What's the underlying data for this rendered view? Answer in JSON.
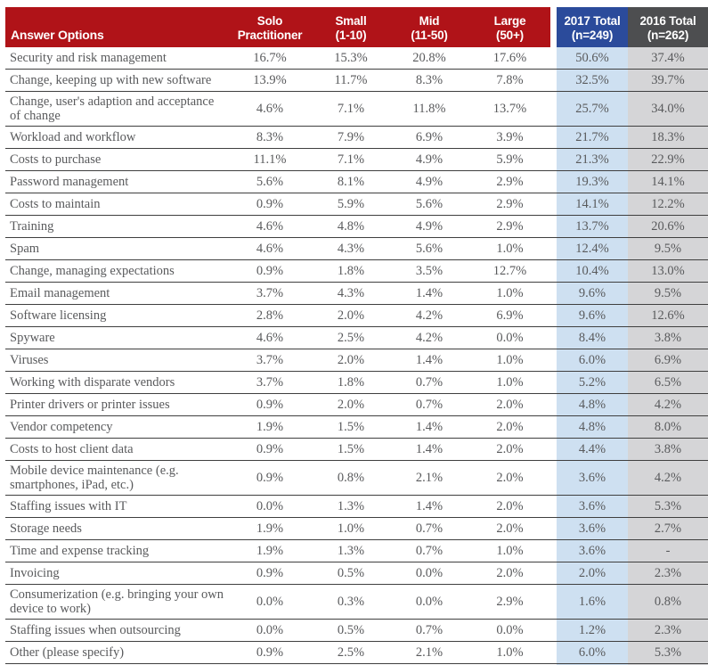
{
  "chart_data": {
    "type": "table",
    "columns": [
      {
        "label": "Answer Options"
      },
      {
        "line1": "Solo",
        "line2": "Practitioner"
      },
      {
        "line1": "Small",
        "line2": "(1-10)"
      },
      {
        "line1": "Mid",
        "line2": "(11-50)"
      },
      {
        "line1": "Large",
        "line2": "(50+)"
      },
      {
        "line1": "2017 Total",
        "line2": "(n=249)"
      },
      {
        "line1": "2016 Total",
        "line2": "(n=262)"
      }
    ],
    "rows": [
      {
        "label": "Security and risk management",
        "values": [
          "16.7%",
          "15.3%",
          "20.8%",
          "17.6%",
          "50.6%",
          "37.4%"
        ]
      },
      {
        "label": "Change, keeping up with new software",
        "values": [
          "13.9%",
          "11.7%",
          "8.3%",
          "7.8%",
          "32.5%",
          "39.7%"
        ]
      },
      {
        "label": "Change, user's adaption and acceptance of change",
        "values": [
          "4.6%",
          "7.1%",
          "11.8%",
          "13.7%",
          "25.7%",
          "34.0%"
        ]
      },
      {
        "label": "Workload and workflow",
        "values": [
          "8.3%",
          "7.9%",
          "6.9%",
          "3.9%",
          "21.7%",
          "18.3%"
        ]
      },
      {
        "label": "Costs to purchase",
        "values": [
          "11.1%",
          "7.1%",
          "4.9%",
          "5.9%",
          "21.3%",
          "22.9%"
        ]
      },
      {
        "label": "Password management",
        "values": [
          "5.6%",
          "8.1%",
          "4.9%",
          "2.9%",
          "19.3%",
          "14.1%"
        ]
      },
      {
        "label": "Costs to maintain",
        "values": [
          "0.9%",
          "5.9%",
          "5.6%",
          "2.9%",
          "14.1%",
          "12.2%"
        ]
      },
      {
        "label": "Training",
        "values": [
          "4.6%",
          "4.8%",
          "4.9%",
          "2.9%",
          "13.7%",
          "20.6%"
        ]
      },
      {
        "label": "Spam",
        "values": [
          "4.6%",
          "4.3%",
          "5.6%",
          "1.0%",
          "12.4%",
          "9.5%"
        ]
      },
      {
        "label": "Change, managing expectations",
        "values": [
          "0.9%",
          "1.8%",
          "3.5%",
          "12.7%",
          "10.4%",
          "13.0%"
        ]
      },
      {
        "label": "Email management",
        "values": [
          "3.7%",
          "4.3%",
          "1.4%",
          "1.0%",
          "9.6%",
          "9.5%"
        ]
      },
      {
        "label": "Software licensing",
        "values": [
          "2.8%",
          "2.0%",
          "4.2%",
          "6.9%",
          "9.6%",
          "12.6%"
        ]
      },
      {
        "label": "Spyware",
        "values": [
          "4.6%",
          "2.5%",
          "4.2%",
          "0.0%",
          "8.4%",
          "3.8%"
        ]
      },
      {
        "label": "Viruses",
        "values": [
          "3.7%",
          "2.0%",
          "1.4%",
          "1.0%",
          "6.0%",
          "6.9%"
        ]
      },
      {
        "label": "Working with disparate vendors",
        "values": [
          "3.7%",
          "1.8%",
          "0.7%",
          "1.0%",
          "5.2%",
          "6.5%"
        ]
      },
      {
        "label": "Printer drivers or printer issues",
        "values": [
          "0.9%",
          "2.0%",
          "0.7%",
          "2.0%",
          "4.8%",
          "4.2%"
        ]
      },
      {
        "label": "Vendor competency",
        "values": [
          "1.9%",
          "1.5%",
          "1.4%",
          "2.0%",
          "4.8%",
          "8.0%"
        ]
      },
      {
        "label": "Costs to host client data",
        "values": [
          "0.9%",
          "1.5%",
          "1.4%",
          "2.0%",
          "4.4%",
          "3.8%"
        ]
      },
      {
        "label": "Mobile device maintenance (e.g. smartphones, iPad, etc.)",
        "values": [
          "0.9%",
          "0.8%",
          "2.1%",
          "2.0%",
          "3.6%",
          "4.2%"
        ]
      },
      {
        "label": "Staffing issues with IT",
        "values": [
          "0.0%",
          "1.3%",
          "1.4%",
          "2.0%",
          "3.6%",
          "5.3%"
        ]
      },
      {
        "label": "Storage needs",
        "values": [
          "1.9%",
          "1.0%",
          "0.7%",
          "2.0%",
          "3.6%",
          "2.7%"
        ]
      },
      {
        "label": "Time and expense tracking",
        "values": [
          "1.9%",
          "1.3%",
          "0.7%",
          "1.0%",
          "3.6%",
          "-"
        ]
      },
      {
        "label": "Invoicing",
        "values": [
          "0.9%",
          "0.5%",
          "0.0%",
          "2.0%",
          "2.0%",
          "2.3%"
        ]
      },
      {
        "label": "Consumerization (e.g. bringing your own device to work)",
        "values": [
          "0.0%",
          "0.3%",
          "0.0%",
          "2.9%",
          "1.6%",
          "0.8%"
        ]
      },
      {
        "label": "Staffing issues when outsourcing",
        "values": [
          "0.0%",
          "0.5%",
          "0.7%",
          "0.0%",
          "1.2%",
          "2.3%"
        ]
      },
      {
        "label": "Other (please specify)",
        "values": [
          "0.9%",
          "2.5%",
          "2.1%",
          "1.0%",
          "6.0%",
          "5.3%"
        ]
      }
    ]
  },
  "colors": {
    "header_red": "#B01318",
    "header_blue": "#2B4B9B",
    "header_gray": "#4D4E50",
    "col2017_bg": "#CEE0F1",
    "col2016_bg": "#D5D5D7",
    "row_border": "#3F3F3F",
    "body_text": "#595A5C",
    "header_text": "#FFFFFF"
  }
}
